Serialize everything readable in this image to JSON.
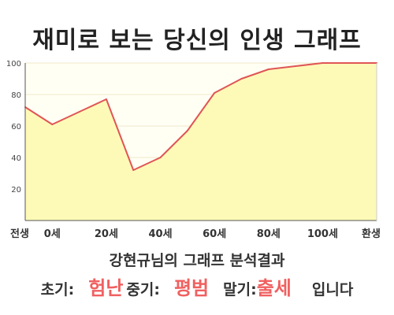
{
  "title": "재미로 보는 당신의 인생 그래프",
  "subtitle": "강현규님의 그래프 분석결과",
  "result": {
    "early_label": "초기:",
    "early_value": "험난",
    "mid_label": "중기:",
    "mid_value": "평범",
    "late_label": "말기:",
    "late_value": "출세",
    "suffix": "입니다"
  },
  "colors": {
    "line": "#e05555",
    "fill": "#fdfab8",
    "plot_bg": "#fffff4",
    "highlight": "#f06060"
  },
  "chart_data": {
    "type": "area",
    "categories": [
      "전생",
      "0세",
      "20세",
      "40세",
      "60세",
      "80세",
      "100세",
      "환생"
    ],
    "x": [
      "전생",
      "0세",
      "",
      "20세",
      "",
      "40세",
      "",
      "60세",
      "",
      "80세",
      "",
      "100세",
      "",
      "환생"
    ],
    "values": [
      72,
      61,
      69,
      77,
      32,
      40,
      57,
      81,
      90,
      96,
      98,
      100,
      100,
      100
    ],
    "yticks": [
      20,
      40,
      60,
      80,
      100
    ],
    "ylim": [
      0,
      100
    ],
    "grid": true,
    "title": "",
    "xlabel": "",
    "ylabel": ""
  }
}
